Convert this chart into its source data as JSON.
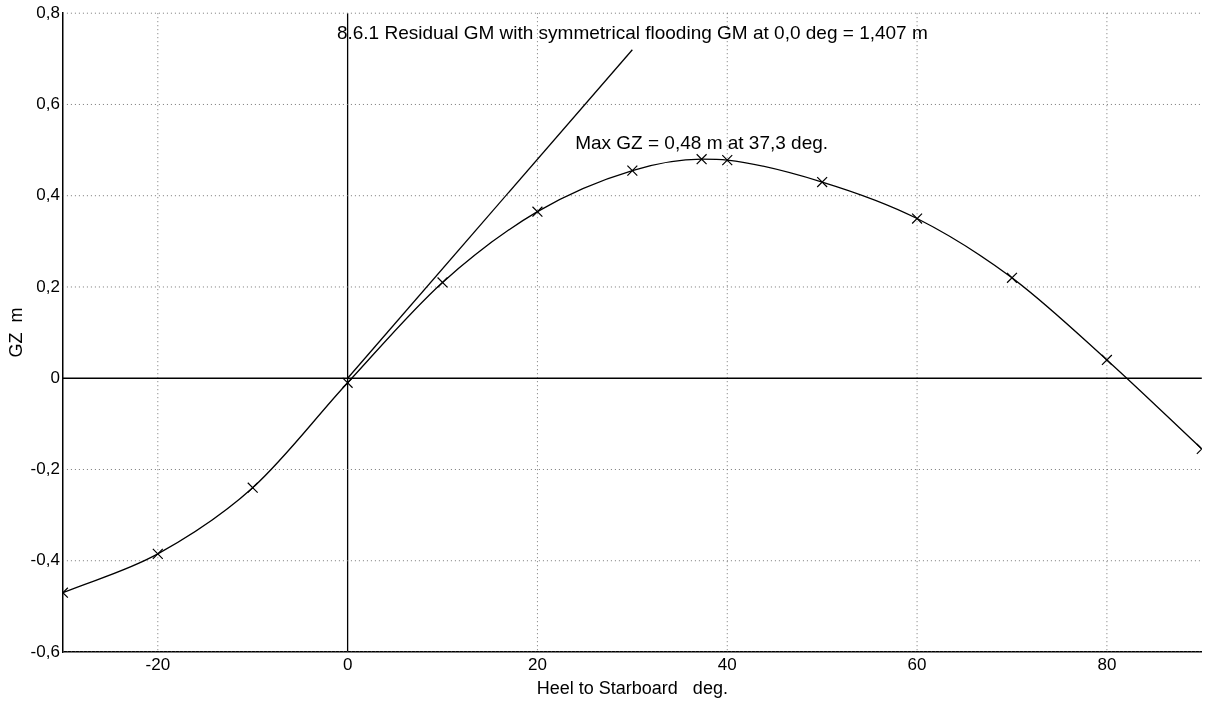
{
  "chart_data": {
    "type": "line",
    "xlabel": "Heel to Starboard   deg.",
    "ylabel": "GZ  m",
    "xlim": [
      -30,
      90
    ],
    "xticks": [
      -20,
      0,
      20,
      40,
      60,
      80
    ],
    "ylim": [
      -0.6,
      0.8
    ],
    "yticks": [
      {
        "value": -0.6,
        "label": "-0,6"
      },
      {
        "value": -0.4,
        "label": "-0,4"
      },
      {
        "value": -0.2,
        "label": "-0,2"
      },
      {
        "value": 0,
        "label": "0"
      },
      {
        "value": 0.2,
        "label": "0,2"
      },
      {
        "value": 0.4,
        "label": "0,4"
      },
      {
        "value": 0.6,
        "label": "0,6"
      },
      {
        "value": 0.8,
        "label": "0,8"
      }
    ],
    "grid": true,
    "legend": false,
    "series": [
      {
        "color": "#000000",
        "marker": "cross",
        "x": [
          -30,
          -20,
          -10,
          0,
          10,
          20,
          30,
          37.3,
          40,
          50,
          60,
          70,
          80,
          90
        ],
        "values": [
          -0.47,
          -0.385,
          -0.24,
          -0.01,
          0.21,
          0.365,
          0.455,
          0.48,
          0.478,
          0.43,
          0.35,
          0.22,
          0.04,
          -0.155
        ]
      },
      {
        "color": "#000000",
        "marker": "none",
        "x": [
          0,
          30
        ],
        "values": [
          0,
          0.72
        ]
      }
    ],
    "annotations": [
      {
        "text": "8.6.1 Residual GM with symmetrical flooding GM at 0,0 deg = 1,407 m",
        "x": 30,
        "y": 0.72
      },
      {
        "text": "Max GZ = 0,48 m at 37,3 deg.",
        "x": 37.3,
        "y": 0.48
      }
    ]
  }
}
